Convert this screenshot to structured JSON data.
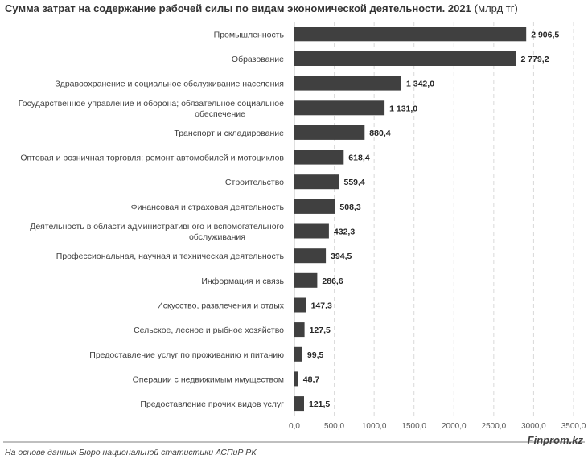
{
  "chart_data": {
    "type": "bar",
    "orientation": "horizontal",
    "title": "Сумма затрат на содержание рабочей силы по видам экономической деятельности. 2021",
    "unit": "(млрд тг)",
    "categories": [
      [
        "Промышленность"
      ],
      [
        "Образование"
      ],
      [
        "Здравоохранение и социальное обслуживание населения"
      ],
      [
        "Государственное управление и оборона; обязательное социальное",
        "обеспечение"
      ],
      [
        "Транспорт и складирование"
      ],
      [
        "Оптовая и розничная торговля; ремонт автомобилей и мотоциклов"
      ],
      [
        "Строительство"
      ],
      [
        "Финансовая и страховая деятельность"
      ],
      [
        "Деятельность в области административного и вспомогательного",
        "обслуживания"
      ],
      [
        "Профессиональная, научная и техническая деятельность"
      ],
      [
        "Информация и связь"
      ],
      [
        "Искусство, развлечения и отдых"
      ],
      [
        "Сельское, лесное и рыбное хозяйство"
      ],
      [
        "Предоставление услуг по проживанию и питанию"
      ],
      [
        "Операции с недвижимым имуществом"
      ],
      [
        "Предоставление прочих видов услуг"
      ]
    ],
    "values": [
      2906.5,
      2779.2,
      1342.0,
      1131.0,
      880.4,
      618.4,
      559.4,
      508.3,
      432.3,
      394.5,
      286.6,
      147.3,
      127.5,
      99.5,
      48.7,
      121.5
    ],
    "value_labels": [
      "2 906,5",
      "2 779,2",
      "1 342,0",
      "1 131,0",
      "880,4",
      "618,4",
      "559,4",
      "508,3",
      "432,3",
      "394,5",
      "286,6",
      "147,3",
      "127,5",
      "99,5",
      "48,7",
      "121,5"
    ],
    "xlim": [
      0,
      3500
    ],
    "ticks": [
      0,
      500,
      1000,
      1500,
      2000,
      2500,
      3000,
      3500
    ],
    "tick_labels": [
      "0,0",
      "500,0",
      "1000,0",
      "1500,0",
      "2000,0",
      "2500,0",
      "3000,0",
      "3500,0"
    ],
    "grid": true,
    "bar_color": "#404040"
  },
  "footer": {
    "source": "На основе данных Бюро национальной статистики АСПиР РК",
    "brand": "Finprom.kz"
  }
}
